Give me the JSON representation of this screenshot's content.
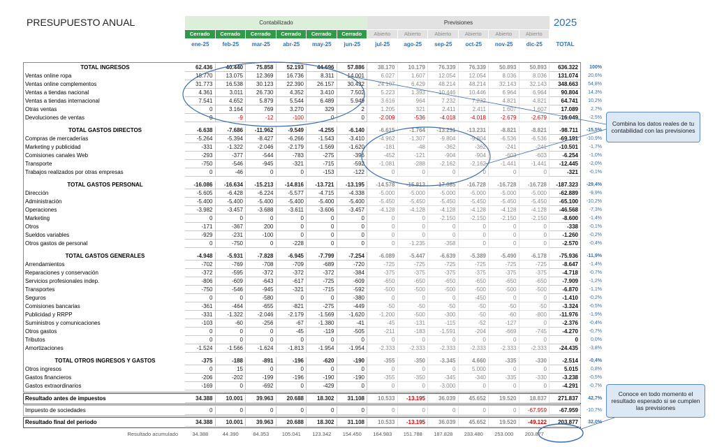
{
  "header": {
    "title": "PRESUPUESTO ANUAL",
    "year": "2025",
    "group_actual": "Contabilizado",
    "group_forecast": "Previsiones",
    "status": [
      "Cerrado",
      "Cerrado",
      "Cerrado",
      "Cerrado",
      "Cerrado",
      "Cerrado",
      "Abierto",
      "Abierto",
      "Abierto",
      "Abierto",
      "Abierto",
      "Abierto"
    ],
    "months": [
      "ene-25",
      "feb-25",
      "mar-25",
      "abr-25",
      "may-25",
      "jun-25",
      "jul-25",
      "ago-25",
      "sep-25",
      "oct-25",
      "nov-25",
      "dic-25"
    ],
    "total_label": "TOTAL"
  },
  "sections": [
    {
      "header": {
        "label": "TOTAL INGRESOS",
        "cells": [
          "62.436",
          "40.440",
          "75.858",
          "52.193",
          "44.696",
          "57.886",
          "38.170",
          "10.179",
          "76.339",
          "76.339",
          "50.893",
          "50.893",
          "636.322"
        ],
        "pct": "100%"
      },
      "rows": [
        {
          "label": "Ventas online ropa",
          "cells": [
            "18.770",
            "13.075",
            "12.369",
            "16.736",
            "8.311",
            "14.001",
            "6.027",
            "1.607",
            "12.054",
            "12.054",
            "8.036",
            "8.036",
            "131.074"
          ],
          "pct": "20,6%"
        },
        {
          "label": "Ventas online complementos",
          "cells": [
            "31.773",
            "16.538",
            "30.123",
            "22.390",
            "26.157",
            "30.432",
            "24.107",
            "6.429",
            "48.214",
            "48.214",
            "32.143",
            "32.143",
            "348.663"
          ],
          "pct": "54,8%"
        },
        {
          "label": "Ventas a tiendas nacional",
          "cells": [
            "4.361",
            "3.011",
            "26.730",
            "4.352",
            "3.410",
            "7.502",
            "5.223",
            "1.393",
            "10.446",
            "10.446",
            "6.964",
            "6.964",
            "90.804"
          ],
          "pct": "14,3%"
        },
        {
          "label": "Ventas a tiendas internacional",
          "cells": [
            "7.541",
            "4.652",
            "5.879",
            "5.544",
            "6.489",
            "5.949",
            "3.616",
            "964",
            "7.232",
            "7.232",
            "4.821",
            "4.821",
            "64.741"
          ],
          "pct": "10,2%"
        },
        {
          "label": "Otras ventas",
          "cells": [
            "0",
            "3.164",
            "769",
            "3.270",
            "329",
            "2",
            "1.205",
            "321",
            "2.411",
            "2.411",
            "1.607",
            "1.607",
            "17.089"
          ],
          "pct": "2,7%"
        },
        {
          "label": "Devoluciones de ventas",
          "cells": [
            "0",
            "-9",
            "-12",
            "-100",
            "0",
            "0",
            "-2.009",
            "-536",
            "-4.018",
            "-4.018",
            "-2.679",
            "-2.679",
            "-16.049"
          ],
          "pct": "-2,5%"
        }
      ]
    },
    {
      "header": {
        "label": "TOTAL GASTOS DIRECTOS",
        "cells": [
          "-6.638",
          "-7.686",
          "-11.962",
          "-9.549",
          "-4.255",
          "-6.140",
          "-6.615",
          "-1.764",
          "-13.231",
          "-13.231",
          "-8.821",
          "-8.821",
          "-98.711"
        ],
        "pct": "-15,5%"
      },
      "rows": [
        {
          "label": "Compras de mercaderías",
          "cells": [
            "-5.264",
            "-5.394",
            "-8.427",
            "-6.266",
            "-1.543",
            "-3.410",
            "-4.962",
            "-1.307",
            "-9.804",
            "-9.804",
            "-6.536",
            "-6.536",
            "-69.191"
          ],
          "pct": "-10,9%"
        },
        {
          "label": "Marketing y publicidad",
          "cells": [
            "-331",
            "-1.322",
            "-2.046",
            "-2.179",
            "-1.569",
            "-1.620",
            "-181",
            "-48",
            "-362",
            "-362",
            "-241",
            "-241",
            "-10.501"
          ],
          "pct": "-1,7%"
        },
        {
          "label": "Comisiones canales Web",
          "cells": [
            "-293",
            "-377",
            "-544",
            "-783",
            "-275",
            "-396",
            "-452",
            "-121",
            "-904",
            "-904",
            "-603",
            "-603",
            "-6.254"
          ],
          "pct": "-1,0%"
        },
        {
          "label": "Transporte",
          "cells": [
            "-750",
            "-546",
            "-945",
            "-321",
            "-715",
            "-592",
            "-1.081",
            "-288",
            "-2.162",
            "-2.162",
            "-1.441",
            "-1.441",
            "-12.445"
          ],
          "pct": "-2,0%"
        },
        {
          "label": "Trabajos realizados por otras empresas",
          "cells": [
            "0",
            "-46",
            "0",
            "0",
            "-153",
            "-122",
            "0",
            "0",
            "0",
            "0",
            "0",
            "0",
            "-321"
          ],
          "pct": "-0,1%"
        }
      ]
    },
    {
      "header": {
        "label": "TOTAL GASTOS PERSONAL",
        "cells": [
          "-16.086",
          "-16.634",
          "-15.213",
          "-14.816",
          "-13.721",
          "-13.195",
          "-14.578",
          "-15.813",
          "-17.085",
          "-16.728",
          "-16.728",
          "-16.728",
          "-187.323"
        ],
        "pct": "-29,4%"
      },
      "rows": [
        {
          "label": "Dirección",
          "cells": [
            "-5.605",
            "-6.428",
            "-6.224",
            "-5.577",
            "-4.715",
            "-4.338",
            "-5.000",
            "-5.000",
            "-5.000",
            "-5.000",
            "-5.000",
            "-5.000",
            "-62.889"
          ],
          "pct": "-9,9%"
        },
        {
          "label": "Administración",
          "cells": [
            "-5.400",
            "-5.400",
            "-5.400",
            "-5.400",
            "-5.400",
            "-5.400",
            "-5.450",
            "-5.450",
            "-5.450",
            "-5.450",
            "-5.450",
            "-5.450",
            "-65.100"
          ],
          "pct": "-10,2%"
        },
        {
          "label": "Operaciones",
          "cells": [
            "-3.982",
            "-3.457",
            "-3.688",
            "-3.611",
            "-3.606",
            "-3.457",
            "-4.128",
            "-4.128",
            "-4.128",
            "-4.128",
            "-4.128",
            "-4.128",
            "-46.568"
          ],
          "pct": "-7,3%"
        },
        {
          "label": "Marketing",
          "cells": [
            "0",
            "0",
            "0",
            "0",
            "0",
            "0",
            "0",
            "0",
            "-2.150",
            "-2.150",
            "-2.150",
            "-2.150",
            "-8.600"
          ],
          "pct": "-1,4%"
        },
        {
          "label": "Otros",
          "cells": [
            "-171",
            "-367",
            "200",
            "0",
            "0",
            "0",
            "0",
            "0",
            "0",
            "0",
            "0",
            "0",
            "-338"
          ],
          "pct": "-0,1%"
        },
        {
          "label": "Sueldos variables",
          "cells": [
            "-929",
            "-231",
            "-100",
            "0",
            "0",
            "0",
            "0",
            "0",
            "0",
            "0",
            "0",
            "0",
            "-1.260"
          ],
          "pct": "-0,2%"
        },
        {
          "label": "Otros gastos de personal",
          "cells": [
            "0",
            "-750",
            "0",
            "-228",
            "0",
            "0",
            "0",
            "-1.235",
            "-358",
            "0",
            "0",
            "0",
            "-2.570"
          ],
          "pct": "-0,4%"
        }
      ]
    },
    {
      "header": {
        "label": "TOTAL GASTOS GENERALES",
        "cells": [
          "-4.948",
          "-5.931",
          "-7.828",
          "-6.945",
          "-7.799",
          "-7.254",
          "-6.089",
          "-5.447",
          "-6.639",
          "-5.389",
          "-5.490",
          "-6.178",
          "-75.936"
        ],
        "pct": "-11,9%"
      },
      "rows": [
        {
          "label": "Arrendamientos",
          "cells": [
            "-702",
            "-769",
            "-708",
            "-709",
            "-689",
            "-720",
            "-725",
            "-725",
            "-725",
            "-725",
            "-725",
            "-725",
            "-8.647"
          ],
          "pct": "-1,4%"
        },
        {
          "label": "Reparaciones y conservación",
          "cells": [
            "-372",
            "-595",
            "-372",
            "-372",
            "-372",
            "-384",
            "-375",
            "-375",
            "-375",
            "-375",
            "-375",
            "-375",
            "-4.718"
          ],
          "pct": "-0,7%"
        },
        {
          "label": "Servicios profesionales indep.",
          "cells": [
            "-806",
            "-609",
            "-643",
            "-617",
            "-725",
            "-609",
            "-650",
            "-650",
            "-650",
            "-650",
            "-650",
            "-650",
            "-7.909"
          ],
          "pct": "-1,2%"
        },
        {
          "label": "Transportes",
          "cells": [
            "-750",
            "-546",
            "-945",
            "-321",
            "-715",
            "-592",
            "-500",
            "-500",
            "-500",
            "-500",
            "-500",
            "-500",
            "-6.870"
          ],
          "pct": "-1,1%"
        },
        {
          "label": "Seguros",
          "cells": [
            "0",
            "0",
            "-580",
            "0",
            "0",
            "-380",
            "0",
            "0",
            "0",
            "-450",
            "0",
            "0",
            "-1.410"
          ],
          "pct": "-0,2%"
        },
        {
          "label": "Comisiones bancarias",
          "cells": [
            "-361",
            "-464",
            "-655",
            "-821",
            "-275",
            "-449",
            "-50",
            "-50",
            "-50",
            "-50",
            "-50",
            "-50",
            "-3.324"
          ],
          "pct": "-0,5%"
        },
        {
          "label": "Publicidad y RRPP",
          "cells": [
            "-331",
            "-1.322",
            "-2.046",
            "-2.179",
            "-1.569",
            "-1.620",
            "-1.200",
            "-500",
            "-300",
            "-50",
            "-60",
            "-800",
            "-11.976"
          ],
          "pct": "-1,9%"
        },
        {
          "label": "Suministros y comunicaciones",
          "cells": [
            "-103",
            "-60",
            "-256",
            "-67",
            "-1.380",
            "-41",
            "-45",
            "-131",
            "-115",
            "-52",
            "-127",
            "0",
            "-2.376"
          ],
          "pct": "-0,4%"
        },
        {
          "label": "Otros gastos",
          "cells": [
            "0",
            "0",
            "0",
            "-45",
            "-119",
            "-505",
            "-211",
            "-183",
            "-1.591",
            "-204",
            "-669",
            "-745",
            "-4.270"
          ],
          "pct": "-0,7%"
        },
        {
          "label": "Tributos",
          "cells": [
            "0",
            "0",
            "0",
            "0",
            "0",
            "0",
            "0",
            "0",
            "0",
            "0",
            "0",
            "0",
            "0"
          ],
          "pct": "0,0%"
        },
        {
          "label": "Amortizaciones",
          "cells": [
            "-1.524",
            "-1.566",
            "-1.624",
            "-1.813",
            "-1.954",
            "-1.954",
            "-2.333",
            "-2.333",
            "-2.333",
            "-2.333",
            "-2.333",
            "-2.333",
            "-24.435"
          ],
          "pct": "-3,8%"
        }
      ]
    },
    {
      "header": {
        "label": "TOTAL OTROS INGRESOS Y GASTOS",
        "cells": [
          "-375",
          "-188",
          "-891",
          "-196",
          "-620",
          "-190",
          "-355",
          "-350",
          "-3.345",
          "4.660",
          "-335",
          "-330",
          "-2.514"
        ],
        "pct": "-0,4%"
      },
      "rows": [
        {
          "label": "Otros ingresos",
          "cells": [
            "0",
            "15",
            "0",
            "0",
            "0",
            "0",
            "0",
            "0",
            "0",
            "5.000",
            "0",
            "0",
            "5.015"
          ],
          "pct": "0,8%"
        },
        {
          "label": "Gastos financieros",
          "cells": [
            "-206",
            "-202",
            "-199",
            "-196",
            "-190",
            "-190",
            "-355",
            "-350",
            "-345",
            "-340",
            "-335",
            "-330",
            "-3.238"
          ],
          "pct": "-0,5%"
        },
        {
          "label": "Gastos extraordinarios",
          "cells": [
            "-169",
            "0",
            "-692",
            "0",
            "-429",
            "0",
            "0",
            "0",
            "-3.000",
            "0",
            "0",
            "0",
            "-4.291"
          ],
          "pct": "-0,7%"
        }
      ]
    }
  ],
  "results": [
    {
      "label": "Resultado antes de impuestos",
      "cells": [
        "34.388",
        "10.001",
        "39.963",
        "20.688",
        "18.302",
        "31.108",
        "10.533",
        "-13.195",
        "36.039",
        "45.652",
        "19.520",
        "18.837",
        "271.837"
      ],
      "pct": "42,7%"
    },
    {
      "label": "Impuesto de sociedades",
      "cells": [
        "0",
        "0",
        "0",
        "0",
        "0",
        "0",
        "0",
        "0",
        "0",
        "0",
        "0",
        "-67.959",
        "-67.959"
      ],
      "pct": "-10,7%"
    },
    {
      "label": "Resultado final del periodo",
      "cells": [
        "34.388",
        "10.001",
        "39.963",
        "20.688",
        "18.302",
        "31.108",
        "10.533",
        "-13.195",
        "36.039",
        "45.652",
        "19.520",
        "-49.122",
        "203.877"
      ],
      "pct": "32,0%"
    }
  ],
  "accumulated": {
    "label": "Resultado acumulado",
    "cells": [
      "34.388",
      "44.390",
      "84.353",
      "105.041",
      "123.342",
      "154.450",
      "164.983",
      "151.788",
      "187.828",
      "233.480",
      "253.000",
      "203.877"
    ]
  },
  "callouts": [
    "Combina los datos reales de tu contabilidad con las previsiones",
    "Conoce en todo momento el resultado esperado si se cumplen las previsiones"
  ]
}
